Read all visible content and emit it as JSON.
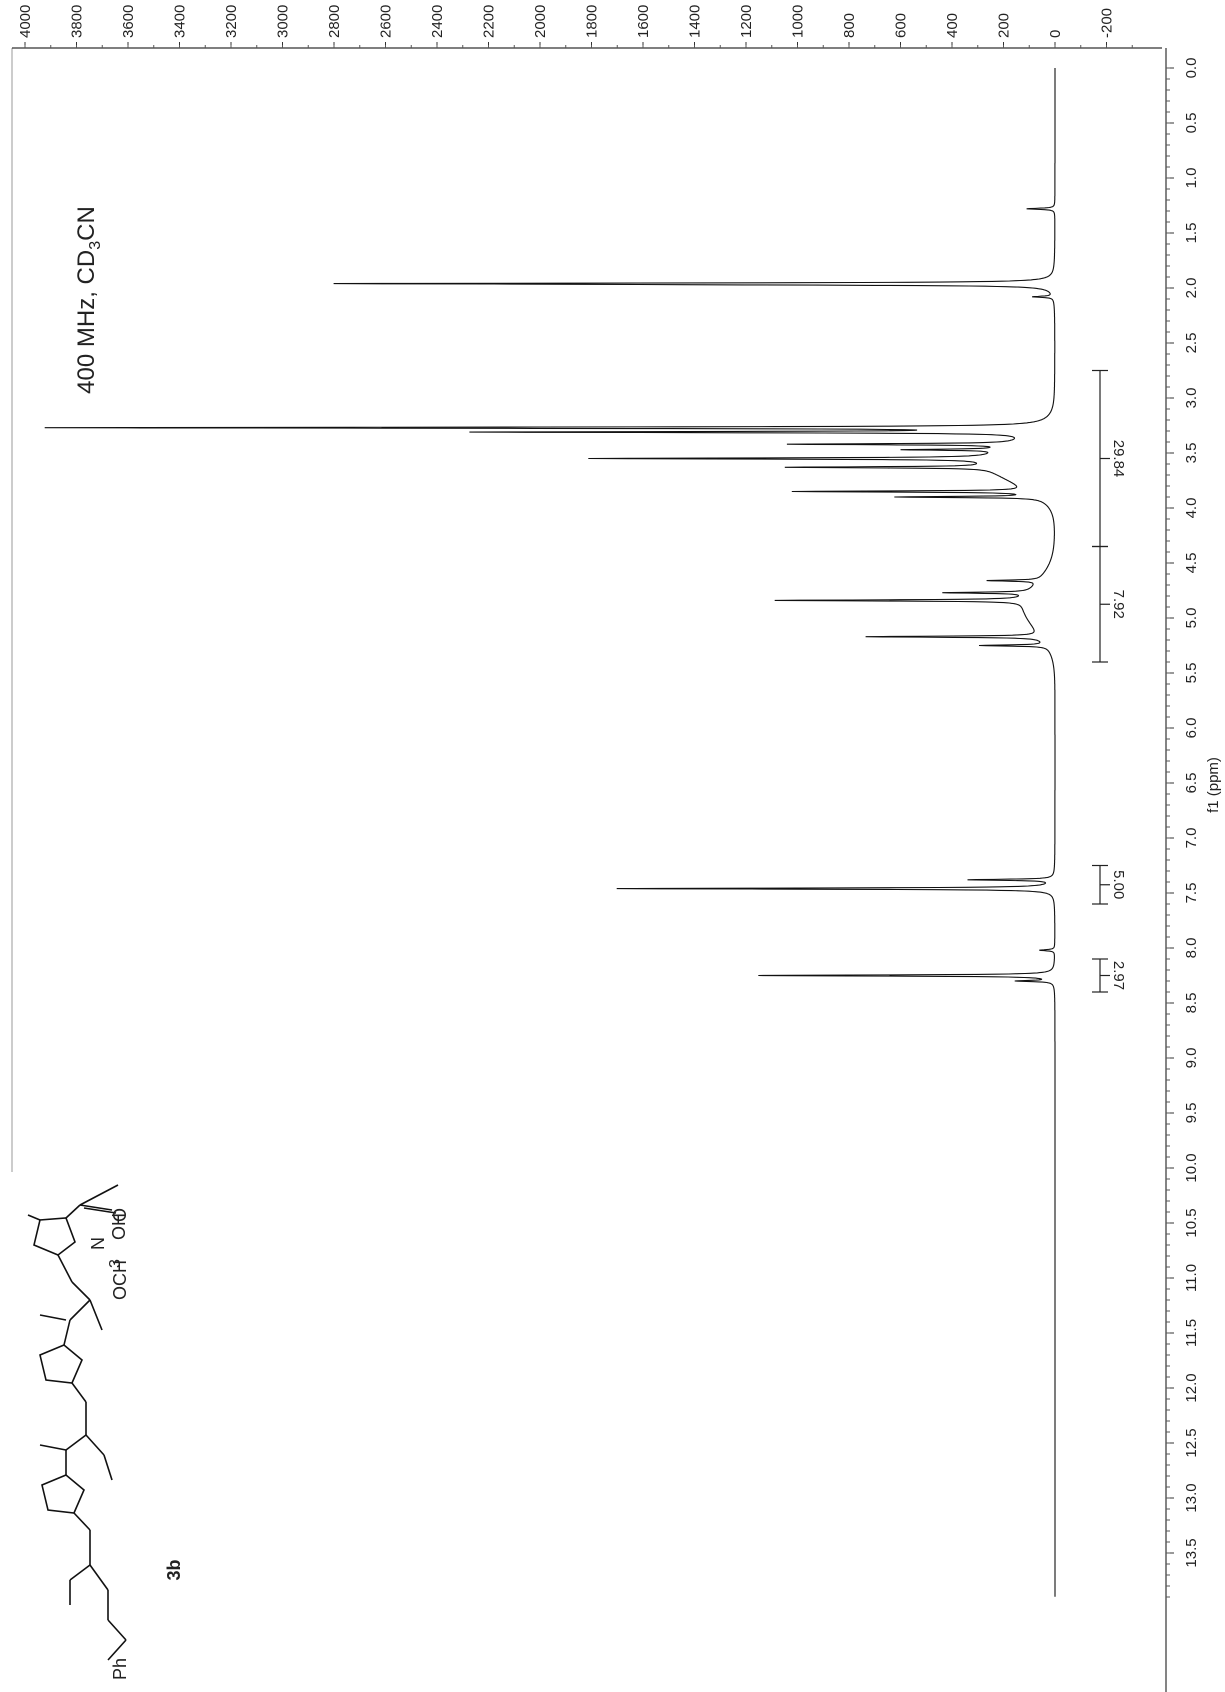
{
  "chart_data": {
    "type": "line",
    "title": "",
    "xlabel": "f1 (ppm)",
    "ylabel": "",
    "x_reversed_along_page_down": true,
    "xlim": [
      0.0,
      13.9
    ],
    "ylim": [
      -300,
      4000
    ],
    "x_ticks": [
      "0.0",
      "0.5",
      "1.0",
      "1.5",
      "2.0",
      "2.5",
      "3.0",
      "3.5",
      "4.0",
      "4.5",
      "5.0",
      "5.5",
      "6.0",
      "6.5",
      "7.0",
      "7.5",
      "8.0",
      "8.5",
      "9.0",
      "9.5",
      "10.0",
      "10.5",
      "11.0",
      "11.5",
      "12.0",
      "12.5",
      "13.0",
      "13.5"
    ],
    "y_ticks": [
      "4000",
      "3800",
      "3600",
      "3400",
      "3200",
      "3000",
      "2800",
      "2600",
      "2400",
      "2200",
      "2000",
      "1800",
      "1600",
      "1400",
      "1200",
      "1000",
      "800",
      "600",
      "400",
      "200",
      "0",
      "-200"
    ],
    "grid": false,
    "annotation": {
      "main": "400 MHz, CD",
      "sub": "3",
      "tail": "CN"
    },
    "peaks": [
      {
        "x": 1.28,
        "y": 110
      },
      {
        "x": 1.96,
        "y": 2600
      },
      {
        "x": 1.97,
        "y": 760
      },
      {
        "x": 2.08,
        "y": 80
      },
      {
        "x": 3.27,
        "y": 3830
      },
      {
        "x": 3.31,
        "y": 2120
      },
      {
        "x": 3.42,
        "y": 870
      },
      {
        "x": 3.47,
        "y": 380
      },
      {
        "x": 3.55,
        "y": 1560
      },
      {
        "x": 3.63,
        "y": 790
      },
      {
        "x": 3.85,
        "y": 920
      },
      {
        "x": 3.9,
        "y": 550
      },
      {
        "x": 4.66,
        "y": 200
      },
      {
        "x": 4.77,
        "y": 330
      },
      {
        "x": 4.84,
        "y": 970
      },
      {
        "x": 5.17,
        "y": 680
      },
      {
        "x": 5.25,
        "y": 260
      },
      {
        "x": 7.38,
        "y": 330
      },
      {
        "x": 7.46,
        "y": 1700
      },
      {
        "x": 8.02,
        "y": 60
      },
      {
        "x": 8.25,
        "y": 1150
      },
      {
        "x": 8.3,
        "y": 140
      }
    ],
    "integrals": [
      {
        "label": "29.84",
        "from": 2.75,
        "to": 4.35
      },
      {
        "label": "7.92",
        "from": 4.35,
        "to": 5.4
      },
      {
        "label": "5.00",
        "from": 7.25,
        "to": 7.6
      },
      {
        "label": "2.97",
        "from": 8.1,
        "to": 8.4
      }
    ],
    "compound": {
      "label": "3b",
      "groups": [
        "OH",
        "O",
        "N",
        "OCH",
        "3",
        "Ph"
      ]
    }
  }
}
